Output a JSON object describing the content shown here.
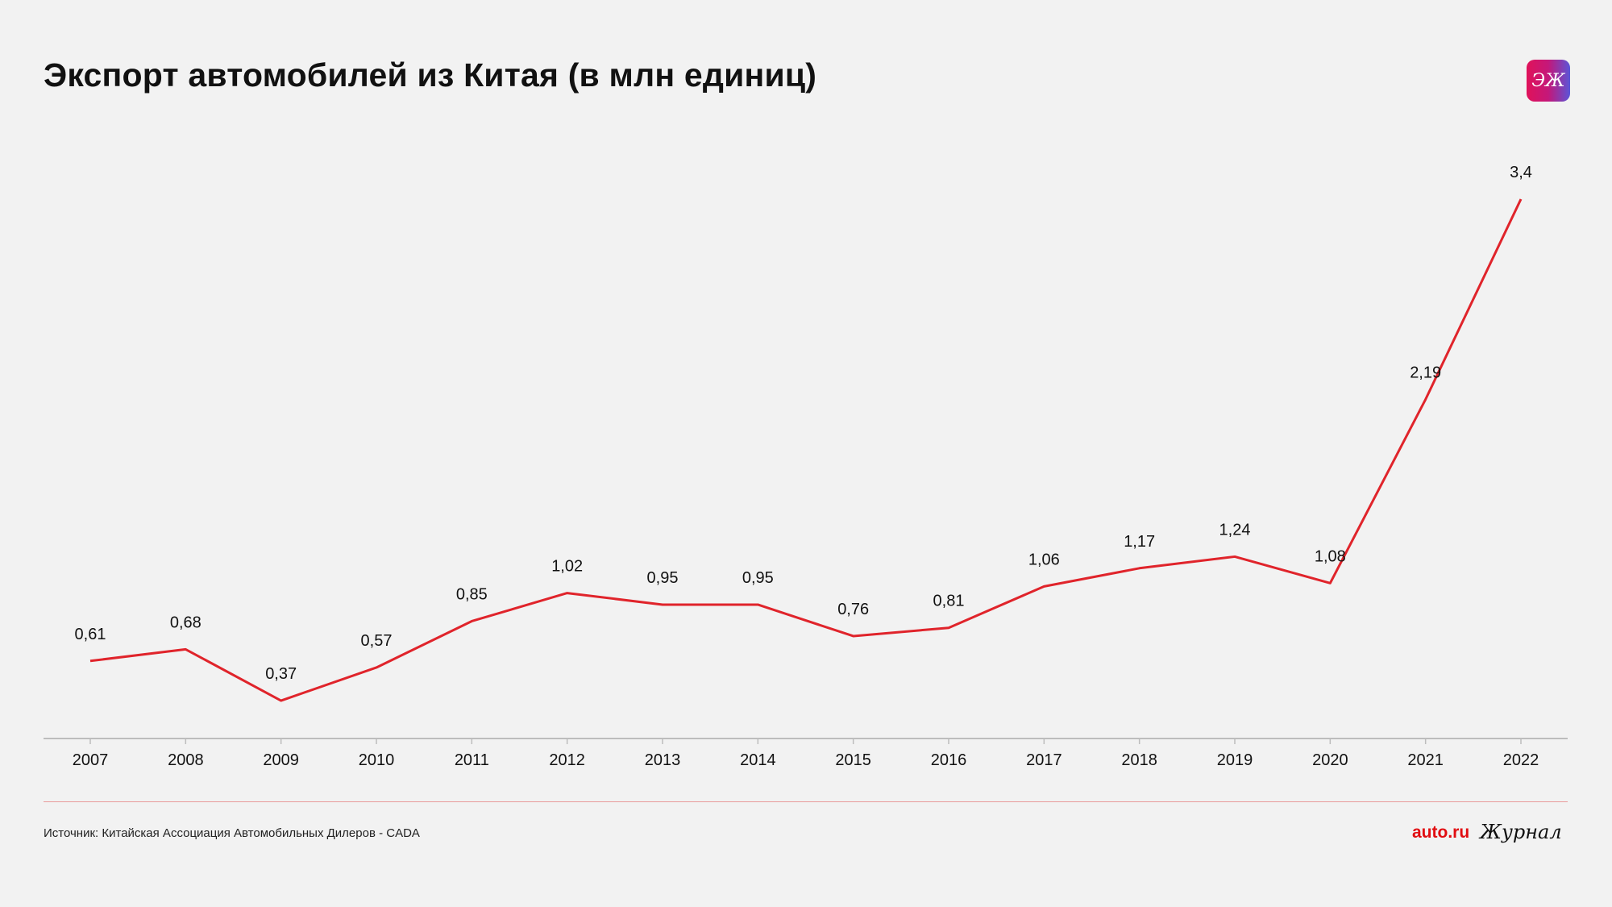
{
  "header": {
    "title": "Экспорт автомобилей из Китая (в млн единиц)",
    "logo_text": "ЭЖ"
  },
  "footer": {
    "source": "Источник: Китайская Ассоциация Автомобильных Дилеров - CADA",
    "brand": "auto.ru",
    "journal": "Журнал"
  },
  "colors": {
    "line": "#e0242b",
    "axis": "#bdbdbd",
    "divider": "#e89a9a"
  },
  "chart_data": {
    "type": "line",
    "title": "Экспорт автомобилей из Китая (в млн единиц)",
    "xlabel": "",
    "ylabel": "",
    "categories": [
      "2007",
      "2008",
      "2009",
      "2010",
      "2011",
      "2012",
      "2013",
      "2014",
      "2015",
      "2016",
      "2017",
      "2018",
      "2019",
      "2020",
      "2021",
      "2022"
    ],
    "values": [
      0.61,
      0.68,
      0.37,
      0.57,
      0.85,
      1.02,
      0.95,
      0.95,
      0.76,
      0.81,
      1.06,
      1.17,
      1.24,
      1.08,
      2.19,
      3.4
    ],
    "labels": [
      "0,61",
      "0,68",
      "0,37",
      "0,57",
      "0,85",
      "1,02",
      "0,95",
      "0,95",
      "0,76",
      "0,81",
      "1,06",
      "1,17",
      "1,24",
      "1,08",
      "2,19",
      "3,4"
    ],
    "grid": false,
    "legend": "none"
  }
}
